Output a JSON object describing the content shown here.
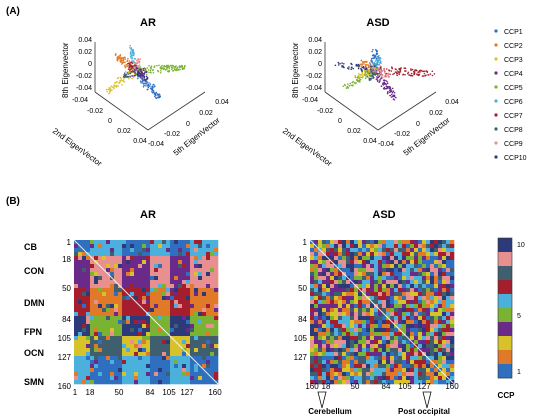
{
  "panel_a": {
    "label": "(A)",
    "plots": [
      {
        "title": "AR",
        "axis_labels": {
          "vertical": "8th Eigenvector",
          "left": "2nd EigenVector",
          "right": "5th EigenVector"
        },
        "vertical_ticks": [
          "0.04",
          "0.02",
          "0",
          "-0.02",
          "-0.04"
        ],
        "left_ticks": [
          "-0.04",
          "-0.02",
          "0",
          "0.02",
          "0.04"
        ],
        "right_ticks": [
          "0.04",
          "0.02",
          "0",
          "-0.02",
          "-0.04"
        ]
      },
      {
        "title": "ASD",
        "axis_labels": {
          "vertical": "8th Eigenvector",
          "left": "2nd EigenVector",
          "right": "5th EigenVector"
        },
        "vertical_ticks": [
          "0.04",
          "0.02",
          "0",
          "-0.02",
          "-0.04"
        ],
        "left_ticks": [
          "-0.04",
          "-0.02",
          "0",
          "0.02",
          "0.04"
        ],
        "right_ticks": [
          "0.04",
          "0.02",
          "0",
          "-0.02",
          "-0.04"
        ]
      }
    ],
    "legend": [
      {
        "label": "CCP1",
        "color": "#2e6fbf"
      },
      {
        "label": "CCP2",
        "color": "#e07a28"
      },
      {
        "label": "CCP3",
        "color": "#d8c22a"
      },
      {
        "label": "CCP4",
        "color": "#6a2a8a"
      },
      {
        "label": "CCP5",
        "color": "#7ab232"
      },
      {
        "label": "CCP6",
        "color": "#4cb0dc"
      },
      {
        "label": "CCP7",
        "color": "#a51e2d"
      },
      {
        "label": "CCP8",
        "color": "#3f5f6e"
      },
      {
        "label": "CCP9",
        "color": "#e89090"
      },
      {
        "label": "CCP10",
        "color": "#2d3a7a"
      }
    ]
  },
  "panel_b": {
    "label": "(B)",
    "matrices": [
      {
        "title": "AR",
        "x_ticks": [
          "1",
          "18",
          "50",
          "84",
          "105",
          "127",
          "160"
        ]
      },
      {
        "title": "ASD",
        "x_ticks": [
          "160",
          "18",
          "50",
          "84",
          "105",
          "127",
          "160"
        ]
      }
    ],
    "network_labels": [
      "CB",
      "CON",
      "DMN",
      "FPN",
      "OCN",
      "SMN"
    ],
    "row_ticks": [
      "1",
      "18",
      "50",
      "84",
      "105",
      "127",
      "160"
    ],
    "annotations": [
      "Cerebellum",
      "Post occipital"
    ],
    "colorbar": {
      "title": "CCP",
      "ticks": [
        "10",
        "5",
        "1"
      ],
      "colors": [
        "#2d3a7a",
        "#e89090",
        "#3f5f6e",
        "#a51e2d",
        "#4cb0dc",
        "#7ab232",
        "#6a2a8a",
        "#d8c22a",
        "#e07a28",
        "#2e6fbf"
      ]
    }
  }
}
